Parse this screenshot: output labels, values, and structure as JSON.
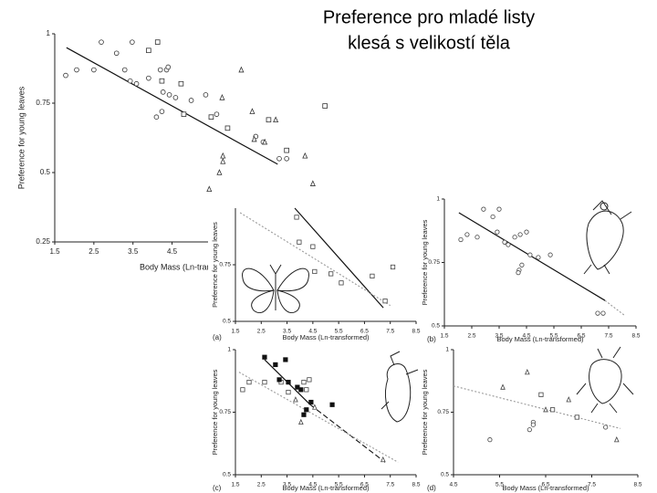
{
  "slide_title": [
    "Preference pro mladé listy",
    "klesá s velikostí těla"
  ],
  "chart_data": [
    {
      "type": "scatter",
      "xlabel": "Body Mass (Ln-transformed)",
      "ylabel": "Preference for young leaves",
      "xlim": [
        1.5,
        8.5
      ],
      "ylim": [
        0.25,
        1
      ],
      "xticks": [
        1.5,
        2.5,
        3.5,
        4.5
      ],
      "yticks": [
        0.25,
        0.5,
        0.75,
        1
      ],
      "series": [
        {
          "marker": "circle",
          "color": "#333333",
          "filled": false,
          "x": [
            1.78,
            2.06,
            2.5,
            2.69,
            3.08,
            3.48,
            3.29,
            3.43,
            3.59,
            3.9,
            4.2,
            4.27,
            4.43,
            4.1,
            4.24,
            4.59,
            4.99,
            5.36,
            5.64,
            6.64,
            6.83,
            7.24,
            7.43,
            4.36,
            4.4
          ],
          "values": [
            0.85,
            0.87,
            0.87,
            0.97,
            0.93,
            0.97,
            0.87,
            0.83,
            0.82,
            0.84,
            0.87,
            0.79,
            0.78,
            0.7,
            0.72,
            0.77,
            0.76,
            0.78,
            0.71,
            0.63,
            0.61,
            0.55,
            0.55,
            0.87,
            0.88
          ]
        },
        {
          "marker": "square",
          "color": "#333333",
          "filled": false,
          "x": [
            3.9,
            4.13,
            4.24,
            4.73,
            4.8,
            5.5,
            5.92,
            6.97,
            7.43,
            8.41
          ],
          "values": [
            0.94,
            0.97,
            0.83,
            0.82,
            0.71,
            0.7,
            0.66,
            0.69,
            0.58,
            0.74
          ]
        },
        {
          "marker": "triangle",
          "color": "#333333",
          "filled": false,
          "x": [
            6.27,
            5.78,
            6.55,
            7.15,
            6.6,
            7.9,
            5.8,
            5.8,
            5.71,
            5.45,
            8.1,
            6.87
          ],
          "values": [
            0.87,
            0.77,
            0.72,
            0.69,
            0.62,
            0.56,
            0.56,
            0.54,
            0.5,
            0.44,
            0.46,
            0.61
          ]
        }
      ],
      "lines": [
        {
          "style": "solid",
          "color": "#111111",
          "x": [
            1.8,
            7.2
          ],
          "values": [
            0.95,
            0.53
          ]
        }
      ]
    },
    {
      "type": "scatter",
      "panel_label": "(a)",
      "xlabel": "Body Mass (Ln-transformed)",
      "ylabel": "Preference for young leaves",
      "xlim": [
        1.5,
        8.5
      ],
      "ylim": [
        0.5,
        1
      ],
      "xticks": [
        1.5,
        2.5,
        3.5,
        4.5,
        5.5,
        6.5,
        7.5,
        8.5
      ],
      "yticks": [
        0.5,
        0.75
      ],
      "series": [
        {
          "marker": "square",
          "color": "#444444",
          "filled": false,
          "x": [
            3.87,
            3.97,
            4.5,
            4.57,
            5.2,
            5.6,
            6.8,
            7.6,
            7.3
          ],
          "values": [
            0.96,
            0.85,
            0.83,
            0.72,
            0.71,
            0.67,
            0.7,
            0.74,
            0.59
          ]
        }
      ],
      "lines": [
        {
          "style": "solid",
          "color": "#111111",
          "x": [
            3.8,
            7.23
          ],
          "values": [
            1,
            0.56
          ]
        },
        {
          "style": "dotted",
          "color": "#999999",
          "x": [
            1.68,
            7.5
          ],
          "values": [
            0.98,
            0.57
          ]
        }
      ]
    },
    {
      "type": "scatter",
      "panel_label": "(b)",
      "xlabel": "Body Mass (Ln-transformed)",
      "ylabel": "Preference for young leaves",
      "xlim": [
        1.5,
        8.5
      ],
      "ylim": [
        0.5,
        1
      ],
      "xticks": [
        1.5,
        2.5,
        3.5,
        4.5,
        5.5,
        6.5,
        7.5,
        8.5
      ],
      "yticks": [
        0.5,
        0.75,
        1
      ],
      "series": [
        {
          "marker": "circle",
          "color": "#444444",
          "filled": false,
          "x": [
            2.1,
            2.33,
            2.7,
            2.93,
            3.27,
            3.5,
            3.43,
            3.7,
            3.83,
            4.07,
            4.27,
            4.5,
            4.23,
            4.33,
            4.2,
            4.63,
            4.93,
            5.37,
            7.1,
            7.3
          ],
          "values": [
            0.84,
            0.86,
            0.85,
            0.96,
            0.93,
            0.96,
            0.87,
            0.83,
            0.82,
            0.85,
            0.86,
            0.87,
            0.72,
            0.74,
            0.71,
            0.78,
            0.77,
            0.78,
            0.55,
            0.55
          ]
        }
      ],
      "lines": [
        {
          "style": "solid",
          "color": "#111111",
          "x": [
            2.03,
            7.37
          ],
          "values": [
            0.946,
            0.6
          ]
        },
        {
          "style": "dotted",
          "color": "#999999",
          "x": [
            7.37,
            8.1
          ],
          "values": [
            0.6,
            0.54
          ]
        }
      ]
    },
    {
      "type": "scatter",
      "panel_label": "(c)",
      "xlabel": "Body Mass (Ln-transformed)",
      "ylabel": "Preference for young leaves",
      "xlim": [
        1.5,
        8.5
      ],
      "ylim": [
        0.5,
        1
      ],
      "xticks": [
        1.5,
        2.5,
        3.5,
        4.5,
        5.5,
        6.5,
        7.5,
        8.5
      ],
      "yticks": [
        0.5,
        0.75,
        1
      ],
      "series": [
        {
          "marker": "square",
          "color": "#444444",
          "filled": false,
          "x": [
            1.78,
            2.03,
            2.63,
            3.27,
            3.55,
            4.15,
            4.36,
            4.25
          ],
          "values": [
            0.84,
            0.87,
            0.87,
            0.87,
            0.83,
            0.87,
            0.88,
            0.84
          ]
        },
        {
          "marker": "square",
          "color": "#111111",
          "filled": true,
          "x": [
            2.63,
            3.05,
            3.2,
            3.44,
            3.55,
            3.9,
            4.04,
            4.15,
            4.25,
            4.43,
            5.25
          ],
          "values": [
            0.97,
            0.94,
            0.88,
            0.96,
            0.87,
            0.85,
            0.84,
            0.74,
            0.76,
            0.79,
            0.78
          ]
        },
        {
          "marker": "triangle",
          "color": "#444444",
          "filled": false,
          "x": [
            3.83,
            4.57,
            4.04,
            7.22
          ],
          "values": [
            0.8,
            0.77,
            0.71,
            0.56
          ]
        }
      ],
      "lines": [
        {
          "style": "solid",
          "color": "#111111",
          "x": [
            2.63,
            4.4
          ],
          "values": [
            0.96,
            0.78
          ]
        },
        {
          "style": "dashed",
          "color": "#111111",
          "x": [
            4.4,
            7.3
          ],
          "values": [
            0.78,
            0.55
          ]
        },
        {
          "style": "dotted",
          "color": "#999999",
          "x": [
            1.64,
            7.8
          ],
          "values": [
            0.91,
            0.55
          ]
        }
      ]
    },
    {
      "type": "scatter",
      "panel_label": "(d)",
      "xlabel": "Body Mass (Ln-transformed)",
      "ylabel": "Preference for young leaves",
      "xlim": [
        4.5,
        8.5
      ],
      "ylim": [
        0.5,
        1
      ],
      "xticks": [
        4.5,
        5.5,
        6.5,
        7.5,
        8.5
      ],
      "yticks": [
        0.5,
        0.75,
        1
      ],
      "series": [
        {
          "marker": "circle",
          "color": "#444444",
          "filled": false,
          "x": [
            5.29,
            6.15,
            6.23,
            6.23,
            7.8
          ],
          "values": [
            0.64,
            0.68,
            0.71,
            0.7,
            0.69
          ]
        },
        {
          "marker": "triangle",
          "color": "#444444",
          "filled": false,
          "x": [
            5.57,
            6.1,
            6.5,
            7.0,
            8.04
          ],
          "values": [
            0.85,
            0.91,
            0.76,
            0.8,
            0.64
          ]
        },
        {
          "marker": "square",
          "color": "#444444",
          "filled": false,
          "x": [
            6.4,
            6.65,
            7.18
          ],
          "values": [
            0.82,
            0.76,
            0.73
          ]
        }
      ],
      "lines": [
        {
          "style": "dotted",
          "color": "#999999",
          "x": [
            4.5,
            8.12
          ],
          "values": [
            0.855,
            0.685
          ]
        }
      ]
    }
  ]
}
